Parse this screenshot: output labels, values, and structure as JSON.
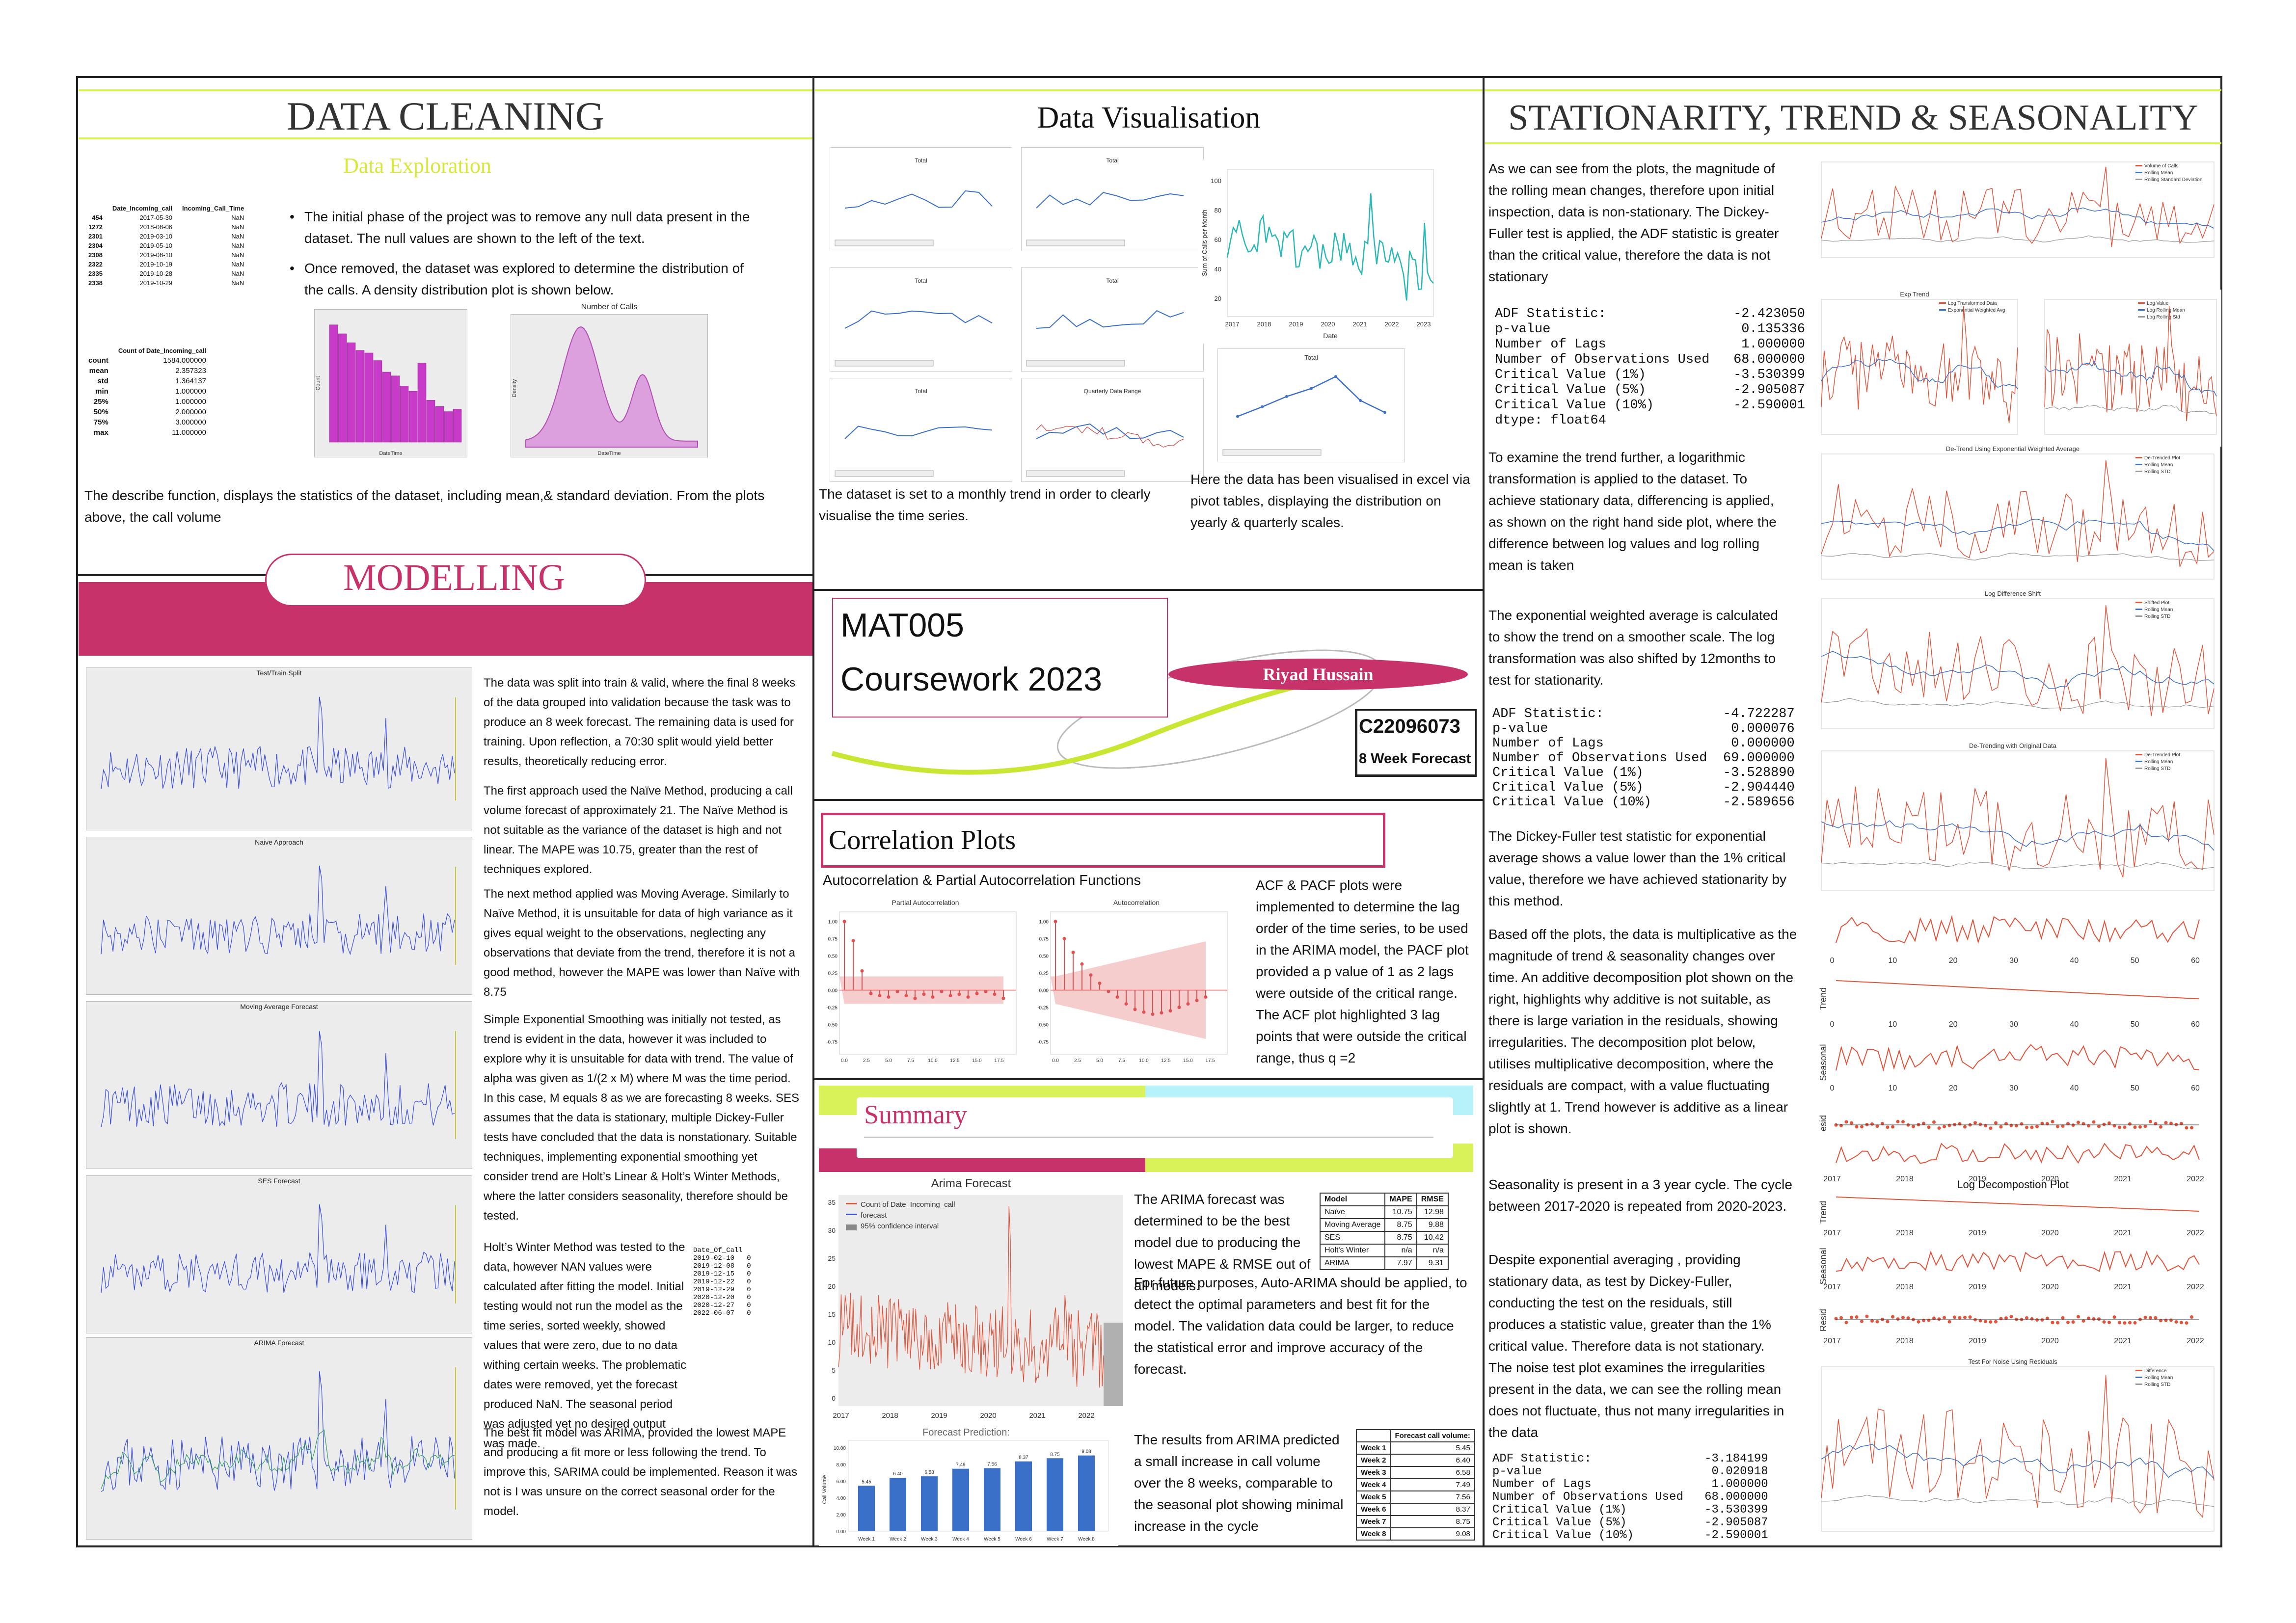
{
  "colors": {
    "accent": "#c8326b",
    "lime": "#d9f25a",
    "cyan": "#b7f2fb",
    "plot_bg": "#ececec",
    "blue": "#3a4fe0",
    "magenta": "#c83ac8",
    "teal": "#2ab7b7",
    "red": "#e0533a"
  },
  "data_cleaning": {
    "title": "DATA CLEANING",
    "subtitle": "Data Exploration",
    "null_table": {
      "headers": [
        "",
        "Date_Incoming_call",
        "Incoming_Call_Time"
      ],
      "rows": [
        [
          "454",
          "2017-05-30",
          "NaN"
        ],
        [
          "1272",
          "2018-08-06",
          "NaN"
        ],
        [
          "2301",
          "2019-03-10",
          "NaN"
        ],
        [
          "2304",
          "2019-05-10",
          "NaN"
        ],
        [
          "2308",
          "2019-08-10",
          "NaN"
        ],
        [
          "2322",
          "2019-10-19",
          "NaN"
        ],
        [
          "2335",
          "2019-10-28",
          "NaN"
        ],
        [
          "2338",
          "2019-10-29",
          "NaN"
        ]
      ]
    },
    "describe_table": {
      "header": "Count of Date_Incoming_call",
      "rows": [
        [
          "count",
          "1584.000000"
        ],
        [
          "mean",
          "2.357323"
        ],
        [
          "std",
          "1.364137"
        ],
        [
          "min",
          "1.000000"
        ],
        [
          "25%",
          "1.000000"
        ],
        [
          "50%",
          "2.000000"
        ],
        [
          "75%",
          "3.000000"
        ],
        [
          "max",
          "11.000000"
        ]
      ]
    },
    "bullet1": "The initial phase of the project was to remove any null data present in the dataset. The null values are shown to the left of the text.",
    "bullet2": "Once removed, the dataset was explored to determine the distribution of the calls. A density distribution plot is shown below.",
    "density_title": "Number of Calls",
    "hist_xlabel": "DateTime",
    "hist_ylabel": "Count",
    "density_xlabel": "DateTime",
    "density_ylabel": "Density",
    "caption": "The describe function, displays the statistics of the dataset, including mean,& standard deviation. From the plots above, the call volume"
  },
  "data_visualisation": {
    "title": "Data Visualisation",
    "pivot_title": "Total",
    "caption_left": "The dataset is set to a monthly trend in order to clearly visualise the time series.",
    "caption_right": "Here the data has been visualised in excel via pivot tables, displaying the distribution on yearly & quarterly scales.",
    "quarterly_title": "Quarterly Data Range",
    "big_ylabel": "Sum of Calls per Month",
    "big_xlabel": "Date",
    "big_ticks": [
      "2017",
      "2018",
      "2019",
      "2020",
      "2021",
      "2022",
      "2023"
    ],
    "big_yticks": [
      "100",
      "80",
      "60",
      "40",
      "20"
    ]
  },
  "title_card": {
    "course": "MAT005",
    "year": "Coursework 2023",
    "name": "Riyad Hussain",
    "student_id": "C22096073",
    "forecast": "8 Week Forecast"
  },
  "correlation": {
    "title": "Correlation Plots",
    "subtitle": "Autocorrelation & Partial Autocorrelation Functions",
    "pacf_title": "Partial Autocorrelation",
    "acf_title": "Autocorrelation",
    "text": "ACF & PACF plots were implemented to determine the lag order of the time series, to be used in the ARIMA model, the PACF plot provided a p value of 1 as 2 lags were outside of the critical range. The ACF plot highlighted 3 lag points that were outside the critical range, thus q =2"
  },
  "modelling": {
    "title": "MODELLING",
    "plot_titles": [
      "Test/Train Split",
      "Naive Approach",
      "Moving Average Forecast",
      "SES Forecast",
      "ARIMA Forecast"
    ],
    "p1": "The data was split into train & valid, where the final 8 weeks of the data grouped into validation because the task was to produce an 8 week forecast. The remaining data is used for training. Upon reflection, a 70:30 split would yield better results, theoretically reducing error.",
    "p2": "The first approach used the Naïve Method, producing a call volume forecast of approximately 21. The Naïve Method is not suitable as the variance of the dataset is high and not linear. The MAPE was 10.75, greater than the rest of techniques explored.",
    "p3": "The next method applied was Moving Average. Similarly to Naïve Method, it is unsuitable for data of high variance as it gives equal weight to the observations, neglecting any observations that deviate from the trend, therefore it is not a good method, however the MAPE was lower than Naïve with 8.75",
    "p4": "Simple Exponential Smoothing was initially not tested, as trend is evident in the data, however it was included to explore why it is unsuitable for data with trend. The value of alpha was given as 1/(2 x M) where M was the time period. In this case, M equals 8 as we are forecasting 8 weeks. SES assumes that the data is stationary, multiple Dickey-Fuller tests have concluded that the data is nonstationary. Suitable techniques, implementing exponential smoothing yet consider trend are Holt’s Linear & Holt’s Winter Methods, where the latter considers seasonality, therefore should be tested.",
    "p5": "Holt’s Winter Method was tested to the data, however NAN values were calculated after fitting the model. Initial testing would not run the model as the time series, sorted weekly, showed values that were zero, due to no data withing certain weeks. The problematic dates were removed, yet the forecast produced NaN. The seasonal period was adjusted yet no desired output was made.",
    "p6": "The best fit model was ARIMA, provided the lowest MAPE and producing a fit more or less following the trend. To improve this, SARIMA could be implemented. Reason it was not is I was unsure on the correct seasonal order for the model.",
    "zero_dates": "Date_Of_Call\n2019-02-10   0\n2019-12-08   0\n2019-12-15   0\n2019-12-22   0\n2019-12-29   0\n2020-12-20   0\n2020-12-27   0\n2022-06-07   0"
  },
  "summary": {
    "title": "Summary",
    "arima_title": "Arima Forecast",
    "legend": [
      "Count of Date_Incoming_call",
      "forecast",
      "95% confidence interval"
    ],
    "arima_ticks": [
      "2017",
      "2018",
      "2019",
      "2020",
      "2021",
      "2022"
    ],
    "arima_yticks": [
      "35",
      "30",
      "25",
      "20",
      "15",
      "10",
      "5",
      "0"
    ],
    "p1": "The ARIMA forecast was determined to be the best model due to producing the lowest MAPE & RMSE out of all models.",
    "p2": "For future purposes, Auto-ARIMA should be applied, to detect the optimal parameters and best fit for the model. The validation data could be larger, to reduce the statistical error and improve accuracy of the forecast.",
    "p3": "The results from ARIMA predicted a small increase in call volume over the 8 weeks, comparable to the seasonal plot showing minimal increase in the cycle",
    "metrics_headers": [
      "Model",
      "MAPE",
      "RMSE"
    ],
    "metrics_rows": [
      [
        "Naïve",
        "10.75",
        "12.98"
      ],
      [
        "Moving Average",
        "8.75",
        "9.88"
      ],
      [
        "SES",
        "8.75",
        "10.42"
      ],
      [
        "Holt's Winter",
        "n/a",
        "n/a"
      ],
      [
        "ARIMA",
        "7.97",
        "9.31"
      ]
    ],
    "forecast_headers": [
      "",
      "Forecast call volume:"
    ],
    "forecast_rows": [
      [
        "Week 1",
        "5.45"
      ],
      [
        "Week 2",
        "6.40"
      ],
      [
        "Week 3",
        "6.58"
      ],
      [
        "Week 4",
        "7.49"
      ],
      [
        "Week 5",
        "7.56"
      ],
      [
        "Week 6",
        "8.37"
      ],
      [
        "Week 7",
        "8.75"
      ],
      [
        "Week 8",
        "9.08"
      ]
    ],
    "bar_title": "Forecast Prediction:",
    "bar_ylabel": "Call Volume"
  },
  "stationarity": {
    "title": "STATIONARITY, TREND & SEASONALITY",
    "p1": "As we can see from the plots, the magnitude of the rolling mean changes, therefore upon initial inspection, data is non-stationary. The Dickey-Fuller test is applied, the ADF statistic is greater than the critical value, therefore the data is not stationary",
    "adf1": "ADF Statistic:                -2.423050\np-value                        0.135336\nNumber of Lags                 1.000000\nNumber of Observations Used   68.000000\nCritical Value (1%)           -3.530399\nCritical Value (5%)           -2.905087\nCritical Value (10%)          -2.590001\ndtype: float64",
    "p2": "To examine the trend further, a logarithmic transformation is applied to the dataset. To achieve stationary data, differencing is applied, as shown on the right hand side plot, where the difference between log values and log rolling mean is taken",
    "p3": "The exponential weighted average is calculated to show the trend on a smoother scale. The log transformation was also shifted by 12months to test for stationarity.",
    "adf2": "ADF Statistic:               -4.722287\np-value                       0.000076\nNumber of Lags                0.000000\nNumber of Observations Used  69.000000\nCritical Value (1%)          -3.528890\nCritical Value (5%)          -2.904440\nCritical Value (10%)         -2.589656",
    "p4": "The Dickey-Fuller test statistic for exponential average shows a value lower than the 1% critical value, therefore we have achieved stationarity by this method.",
    "p5": "Based off the plots, the data is multiplicative as the magnitude of trend & seasonality changes over time. An additive decomposition plot shown on the right, highlights why additive is not suitable, as there is large variation in the residuals, showing irregularities. The decomposition plot below, utilises multiplicative decomposition, where the residuals are compact, with a value fluctuating slightly at 1. Trend however is additive as a linear plot is shown.",
    "p6": "Seasonality is present in a 3 year cycle. The cycle between 2017-2020 is repeated from 2020-2023.",
    "p7": "Despite exponential averaging , providing stationary data, as test by Dickey-Fuller, conducting the test on the residuals, still produces a statistic value, greater than the 1% critical value. Therefore data is not stationary. The noise test plot examines the irregularities present in the data, we can see the rolling mean does not fluctuate, thus not many irregularities in the data",
    "adf3": "ADF Statistic:                -3.184199\np-value                        0.020918\nNumber of Lags                 1.000000\nNumber of Observations Used   68.000000\nCritical Value (1%)           -3.530399\nCritical Value (5%)           -2.905087\nCritical Value (10%)          -2.590001",
    "plot_titles": [
      "Exp Trend",
      "De-Trend Using Exponential Weighted Average",
      "Log Difference Shift",
      "De-Trending with Original Data",
      "Log Decompostion Plot",
      "Test For Noise Using Residuals"
    ],
    "legend1": [
      "Volume of Calls",
      "Rolling Mean",
      "Rolling Standard Deviation"
    ],
    "legend_exp": [
      "Log Transformed Data",
      "Exponential Weighted Avg"
    ],
    "legend_log": [
      "Log Value",
      "Log Rolling Mean",
      "Log Rolling Std"
    ],
    "legend_det": [
      "De-Trended Plot",
      "Rolling Mean",
      "Rolling STD"
    ],
    "legend_shift": [
      "Shifted Plot",
      "Rolling Mean",
      "Rolling STD"
    ],
    "legend_noise": [
      "Difference",
      "Rolling Mean",
      "Rolling STD"
    ],
    "decomp_labels": [
      "Trend",
      "Seasonal",
      "Resid"
    ],
    "decomp_ticks": [
      "2017",
      "2018",
      "2019",
      "2020",
      "2021",
      "2022"
    ],
    "add_ticks": [
      "0",
      "10",
      "20",
      "30",
      "40",
      "50",
      "60"
    ]
  }
}
